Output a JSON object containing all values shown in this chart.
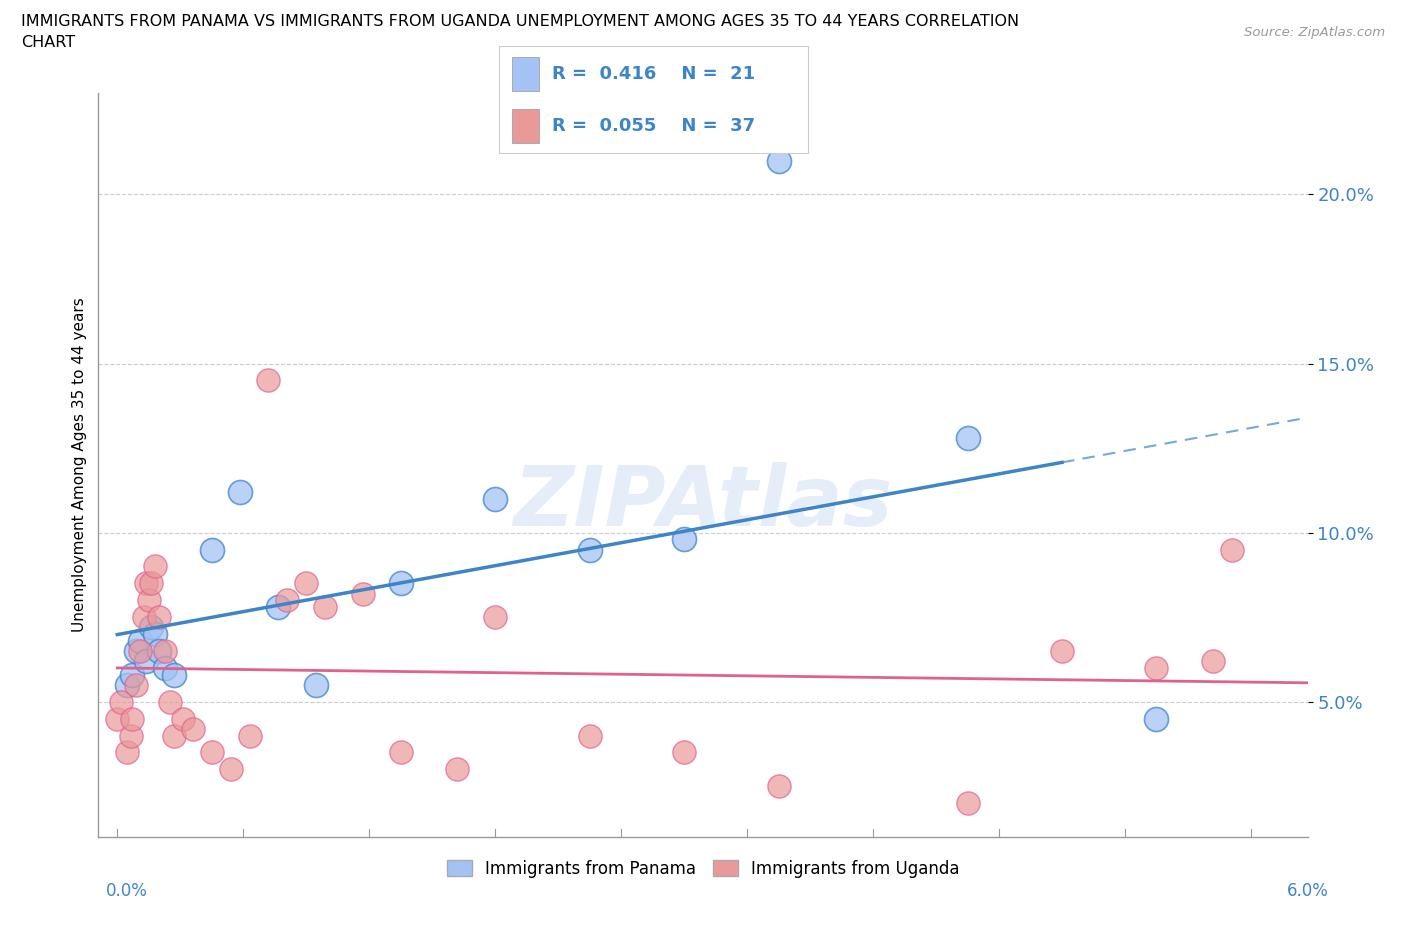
{
  "title_line1": "IMMIGRANTS FROM PANAMA VS IMMIGRANTS FROM UGANDA UNEMPLOYMENT AMONG AGES 35 TO 44 YEARS CORRELATION",
  "title_line2": "CHART",
  "source_text": "Source: ZipAtlas.com",
  "ylabel": "Unemployment Among Ages 35 to 44 years",
  "xlim": [
    -0.1,
    6.3
  ],
  "ylim": [
    1.0,
    23.0
  ],
  "yticks": [
    5.0,
    10.0,
    15.0,
    20.0
  ],
  "ytick_labels": [
    "5.0%",
    "10.0%",
    "15.0%",
    "20.0%"
  ],
  "watermark": "ZIPAtlas",
  "blue_R": 0.416,
  "blue_N": 21,
  "pink_R": 0.055,
  "pink_N": 37,
  "blue_color": "#a4c2f4",
  "pink_color": "#ea9999",
  "blue_line_color": "#3d85c8",
  "pink_line_color": "#e06090",
  "blue_line_solid_end": 5.0,
  "grid_color": "#cccccc",
  "background_color": "#ffffff",
  "blue_scatter_x": [
    0.05,
    0.08,
    0.1,
    0.12,
    0.15,
    0.18,
    0.2,
    0.22,
    0.25,
    0.3,
    0.5,
    0.65,
    0.85,
    1.05,
    1.5,
    2.0,
    2.5,
    3.0,
    3.5,
    4.5,
    5.5
  ],
  "blue_scatter_y": [
    5.5,
    5.8,
    6.5,
    6.8,
    6.2,
    7.2,
    7.0,
    6.5,
    6.0,
    5.8,
    9.5,
    11.2,
    7.8,
    5.5,
    8.5,
    11.0,
    9.5,
    9.8,
    21.0,
    12.8,
    4.5
  ],
  "pink_scatter_x": [
    0.0,
    0.02,
    0.05,
    0.07,
    0.08,
    0.1,
    0.12,
    0.14,
    0.15,
    0.17,
    0.18,
    0.2,
    0.22,
    0.25,
    0.28,
    0.3,
    0.35,
    0.4,
    0.5,
    0.6,
    0.7,
    0.8,
    0.9,
    1.0,
    1.1,
    1.3,
    1.5,
    1.8,
    2.0,
    2.5,
    3.0,
    3.5,
    4.5,
    5.0,
    5.5,
    5.8,
    5.9
  ],
  "pink_scatter_y": [
    4.5,
    5.0,
    3.5,
    4.0,
    4.5,
    5.5,
    6.5,
    7.5,
    8.5,
    8.0,
    8.5,
    9.0,
    7.5,
    6.5,
    5.0,
    4.0,
    4.5,
    4.2,
    3.5,
    3.0,
    4.0,
    14.5,
    8.0,
    8.5,
    7.8,
    8.2,
    3.5,
    3.0,
    7.5,
    4.0,
    3.5,
    2.5,
    2.0,
    6.5,
    6.0,
    6.2,
    9.5
  ]
}
